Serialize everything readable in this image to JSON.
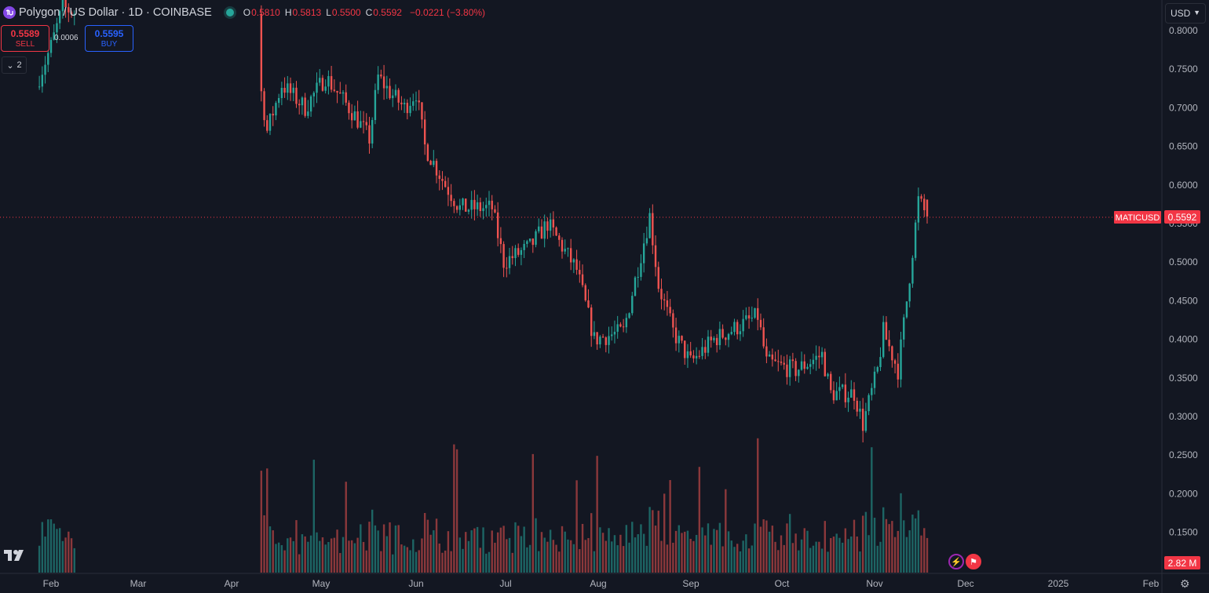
{
  "legend": {
    "title": "Polygon / US Dollar · 1D · COINBASE",
    "open_label": "O",
    "open": "0.5810",
    "high_label": "H",
    "high": "0.5813",
    "low_label": "L",
    "low": "0.5500",
    "close_label": "C",
    "close": "0.5592",
    "change": "−0.0221 (−3.80%)"
  },
  "trade": {
    "sell_price": "0.5589",
    "sell_label": "SELL",
    "buy_price": "0.5595",
    "buy_label": "BUY",
    "spread": "0.0006"
  },
  "indicators_collapse": {
    "count": "2"
  },
  "currency": {
    "value": "USD"
  },
  "price_scale": {
    "ticks": [
      "0.8000",
      "0.7500",
      "0.7000",
      "0.6500",
      "0.6000",
      "0.5500",
      "0.5000",
      "0.4500",
      "0.4000",
      "0.3500",
      "0.3000",
      "0.2500",
      "0.2000",
      "0.1500"
    ],
    "symbol_label": "MATICUSD",
    "last_price": "0.5592",
    "volume_label": "2.82 M"
  },
  "time_scale": {
    "labels": [
      "Feb",
      "Mar",
      "Apr",
      "May",
      "Jun",
      "Jul",
      "Aug",
      "Sep",
      "Oct",
      "Nov",
      "Dec",
      "2025",
      "Feb"
    ]
  },
  "colors": {
    "up": "#26a69a",
    "down": "#ef5350",
    "background": "#131722",
    "grid": "#131722",
    "last_price": "#f23645"
  },
  "chart_data": {
    "type": "candlestick",
    "title": "Polygon / US Dollar · 1D · COINBASE",
    "ylim": [
      0.13,
      0.815
    ],
    "x_labels": [
      "Feb",
      "Mar",
      "Apr",
      "May",
      "Jun",
      "Jul",
      "Aug",
      "Sep",
      "Oct",
      "Nov",
      "Dec",
      "2025",
      "Feb"
    ],
    "last_price": 0.5592,
    "close_path": [
      [
        "2024-01-28",
        0.74
      ],
      [
        "2024-02-01",
        0.78
      ],
      [
        "2024-02-05",
        0.83
      ],
      [
        "2024-04-13",
        0.72
      ],
      [
        "2024-04-15",
        0.67
      ],
      [
        "2024-04-20",
        0.73
      ],
      [
        "2024-04-28",
        0.7
      ],
      [
        "2024-05-05",
        0.74
      ],
      [
        "2024-05-15",
        0.69
      ],
      [
        "2024-05-20",
        0.66
      ],
      [
        "2024-05-23",
        0.74
      ],
      [
        "2024-05-27",
        0.72
      ],
      [
        "2024-06-01",
        0.7
      ],
      [
        "2024-06-05",
        0.72
      ],
      [
        "2024-06-08",
        0.65
      ],
      [
        "2024-06-15",
        0.6
      ],
      [
        "2024-06-20",
        0.57
      ],
      [
        "2024-07-01",
        0.57
      ],
      [
        "2024-07-05",
        0.5
      ],
      [
        "2024-07-14",
        0.52
      ],
      [
        "2024-07-20",
        0.55
      ],
      [
        "2024-07-25",
        0.52
      ],
      [
        "2024-07-30",
        0.49
      ],
      [
        "2024-08-05",
        0.4
      ],
      [
        "2024-08-15",
        0.41
      ],
      [
        "2024-08-24",
        0.56
      ],
      [
        "2024-08-27",
        0.47
      ],
      [
        "2024-09-01",
        0.41
      ],
      [
        "2024-09-07",
        0.37
      ],
      [
        "2024-09-15",
        0.4
      ],
      [
        "2024-09-25",
        0.42
      ],
      [
        "2024-09-30",
        0.43
      ],
      [
        "2024-10-03",
        0.37
      ],
      [
        "2024-10-13",
        0.36
      ],
      [
        "2024-10-22",
        0.38
      ],
      [
        "2024-10-25",
        0.33
      ],
      [
        "2024-11-02",
        0.33
      ],
      [
        "2024-11-05",
        0.29
      ],
      [
        "2024-11-10",
        0.36
      ],
      [
        "2024-11-12",
        0.41
      ],
      [
        "2024-11-17",
        0.36
      ],
      [
        "2024-11-20",
        0.45
      ],
      [
        "2024-11-24",
        0.58
      ],
      [
        "2024-11-27",
        0.5592
      ]
    ]
  }
}
